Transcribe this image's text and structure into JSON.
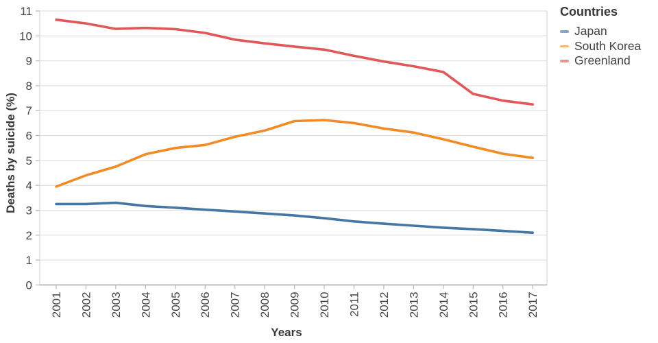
{
  "figure": {
    "y_axis_title": "Deaths by suicide (%)",
    "x_axis_title": "Years",
    "legend_title": "Countries"
  },
  "colors": {
    "gridline": "#e2e2e2",
    "plot_border": "#d9d9d9",
    "x_axis_line": "#a6a6a6",
    "tick_mark": "#bdbdbd",
    "tick_text": "#474747",
    "title_text": "#383838"
  },
  "chart_data": {
    "type": "line",
    "title": "",
    "xlabel": "Years",
    "ylabel": "Deaths by suicide (%)",
    "legend_title": "Countries",
    "legend_position": "top-right",
    "grid": true,
    "ylim": [
      0,
      11
    ],
    "ytick_step": 1,
    "categories": [
      "2001",
      "2002",
      "2003",
      "2004",
      "2005",
      "2006",
      "2007",
      "2008",
      "2009",
      "2010",
      "2011",
      "2012",
      "2013",
      "2014",
      "2015",
      "2016",
      "2017"
    ],
    "series": [
      {
        "name": "Japan",
        "color": "#4577a5",
        "values": [
          3.25,
          3.25,
          3.3,
          3.17,
          3.1,
          3.02,
          2.95,
          2.87,
          2.79,
          2.68,
          2.55,
          2.46,
          2.38,
          2.3,
          2.24,
          2.17,
          2.1
        ]
      },
      {
        "name": "South Korea",
        "color": "#f18b26",
        "values": [
          3.95,
          4.4,
          4.75,
          5.25,
          5.5,
          5.62,
          5.95,
          6.2,
          6.58,
          6.62,
          6.5,
          6.28,
          6.12,
          5.85,
          5.55,
          5.27,
          5.1
        ]
      },
      {
        "name": "Greenland",
        "color": "#e25757",
        "values": [
          10.65,
          10.5,
          10.28,
          10.32,
          10.27,
          10.12,
          9.85,
          9.7,
          9.57,
          9.45,
          9.2,
          8.97,
          8.78,
          8.55,
          7.67,
          7.4,
          7.25
        ]
      }
    ]
  }
}
